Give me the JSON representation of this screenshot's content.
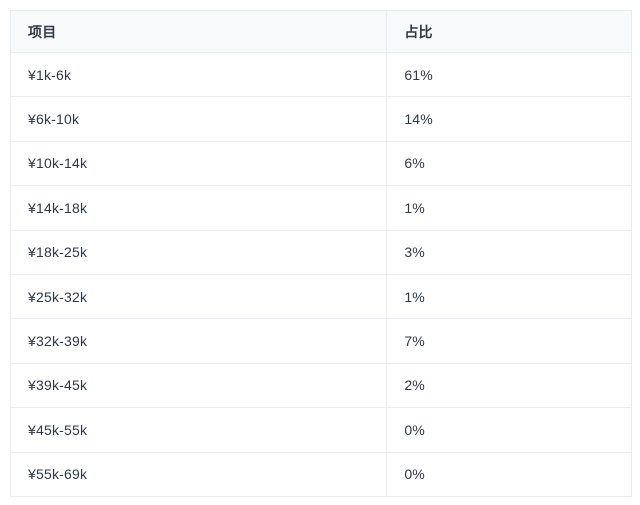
{
  "page": {
    "background": "#ffffff"
  },
  "table": {
    "columns": [
      "项目",
      "占比"
    ],
    "rows": [
      {
        "item": "¥1k-6k",
        "value": "61%"
      },
      {
        "item": "¥6k-10k",
        "value": "14%"
      },
      {
        "item": "¥10k-14k",
        "value": "6%"
      },
      {
        "item": "¥14k-18k",
        "value": "1%"
      },
      {
        "item": "¥18k-25k",
        "value": "3%"
      },
      {
        "item": "¥25k-32k",
        "value": "1%"
      },
      {
        "item": "¥32k-39k",
        "value": "7%"
      },
      {
        "item": "¥39k-45k",
        "value": "2%"
      },
      {
        "item": "¥45k-55k",
        "value": "0%"
      },
      {
        "item": "¥55k-69k",
        "value": "0%"
      }
    ],
    "colors": {
      "header_bg": "#f8f9fa",
      "border": "#e9edf1",
      "text": "#2f3946",
      "row_bg": "#ffffff"
    }
  },
  "chart_data": {
    "type": "table",
    "title": "",
    "columns": [
      "项目",
      "占比"
    ],
    "categories": [
      "¥1k-6k",
      "¥6k-10k",
      "¥10k-14k",
      "¥14k-18k",
      "¥18k-25k",
      "¥25k-32k",
      "¥32k-39k",
      "¥39k-45k",
      "¥45k-55k",
      "¥55k-69k"
    ],
    "values": [
      61,
      14,
      6,
      1,
      3,
      1,
      7,
      2,
      0,
      0
    ],
    "unit": "%"
  }
}
